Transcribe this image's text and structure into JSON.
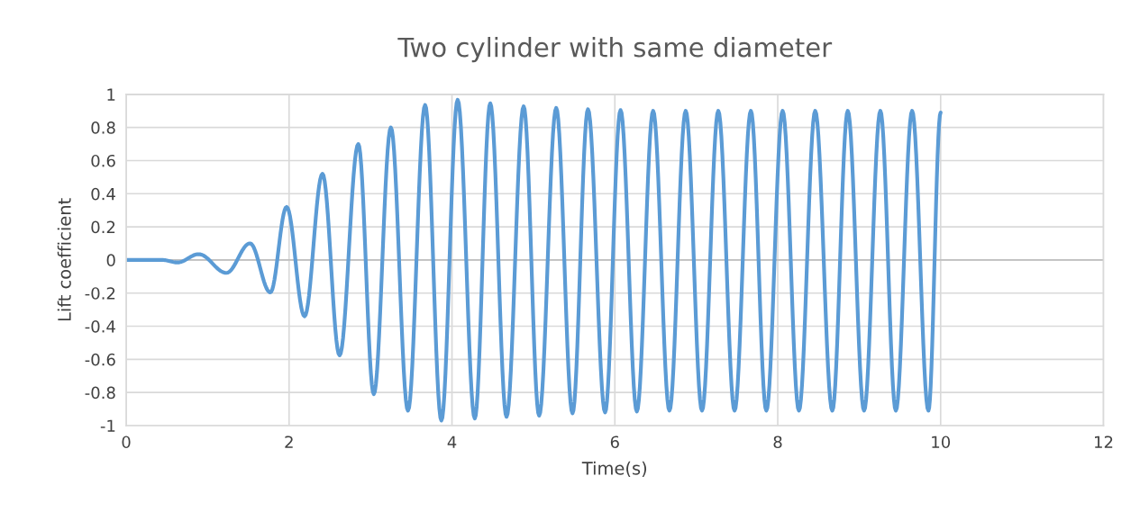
{
  "chart_data": {
    "type": "line",
    "title": "Two cylinder with same diameter",
    "xlabel": "Time(s)",
    "ylabel": "Lift coefficient",
    "xlim": [
      0,
      12
    ],
    "xticks": [
      0,
      2,
      4,
      6,
      8,
      10,
      12
    ],
    "ylim": [
      -1,
      1
    ],
    "yticks": [
      -1,
      -0.8,
      -0.6,
      -0.4,
      -0.2,
      0,
      0.2,
      0.4,
      0.6,
      0.8,
      1
    ],
    "grid": true,
    "marker": "none",
    "line_style": "solid",
    "series": [
      {
        "color": "#5b9bd5",
        "x": [
          0,
          0.44,
          0.63,
          0.89,
          1.23,
          1.52,
          1.77,
          1.97,
          2.19,
          2.41,
          2.62,
          2.85,
          3.04,
          3.25,
          3.46,
          3.67,
          3.87,
          4.07,
          4.28,
          4.47,
          4.67,
          4.88,
          5.07,
          5.28,
          5.48,
          5.67,
          5.88,
          6.07,
          6.27,
          6.47,
          6.67,
          6.87,
          7.07,
          7.27,
          7.47,
          7.67,
          7.86,
          8.06,
          8.26,
          8.46,
          8.67,
          8.86,
          9.06,
          9.26,
          9.45,
          9.65,
          9.85,
          10.0
        ],
        "values": [
          0,
          0,
          -0.015,
          0.035,
          -0.078,
          0.1,
          -0.196,
          0.32,
          -0.34,
          0.52,
          -0.576,
          0.7,
          -0.81,
          0.8,
          -0.91,
          0.936,
          -0.97,
          0.967,
          -0.957,
          0.946,
          -0.947,
          0.928,
          -0.94,
          0.918,
          -0.926,
          0.91,
          -0.92,
          0.905,
          -0.915,
          0.9,
          -0.91,
          0.9,
          -0.91,
          0.9,
          -0.91,
          0.9,
          -0.91,
          0.9,
          -0.91,
          0.9,
          -0.91,
          0.9,
          -0.91,
          0.9,
          -0.91,
          0.9,
          -0.91,
          0.89
        ]
      }
    ]
  }
}
